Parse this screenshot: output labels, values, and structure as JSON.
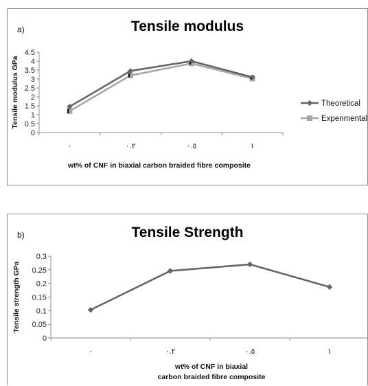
{
  "chart_data": [
    {
      "type": "line",
      "panel_label": "a)",
      "title": "Tensile modulus",
      "xlabel": "wt% of CNF in biaxial carbon braided fibre composite",
      "ylabel": "Tensile modulus GPa",
      "categories": [
        "٠",
        "٠.٢",
        "٠.٥",
        "١"
      ],
      "ylim": [
        0,
        4.5
      ],
      "yticks": [
        "0",
        "0.5",
        "1",
        "1.5",
        "2",
        "2.5",
        "3",
        "3.5",
        "4",
        "4.5"
      ],
      "grid": false,
      "legend_position": "right",
      "series": [
        {
          "name": "Theoretical",
          "marker": "diamond",
          "color": "#666666",
          "values": [
            1.45,
            3.45,
            4.0,
            3.1
          ]
        },
        {
          "name": "Experimental",
          "marker": "square",
          "color": "#a6a6a6",
          "values": [
            1.2,
            3.2,
            3.87,
            3.02
          ]
        }
      ],
      "error_bar_color": "#000000",
      "error_bars": [
        0.25,
        0.22,
        0.12,
        0.08
      ]
    },
    {
      "type": "line",
      "panel_label": "b)",
      "title": "Tensile Strength",
      "xlabel": [
        "wt% of CNF in biaxial",
        "carbon braided fibre composite"
      ],
      "ylabel": "Tensile strength GPa",
      "categories": [
        "٠",
        "٠.٢",
        "٠.٥",
        "١"
      ],
      "ylim": [
        0,
        0.3
      ],
      "yticks": [
        "0",
        "0.05",
        "0.1",
        "0.15",
        "0.2",
        "0.25",
        "0.3"
      ],
      "grid": false,
      "series": [
        {
          "marker": "diamond",
          "color": "#666666",
          "values": [
            0.103,
            0.246,
            0.27,
            0.187
          ]
        }
      ]
    }
  ]
}
